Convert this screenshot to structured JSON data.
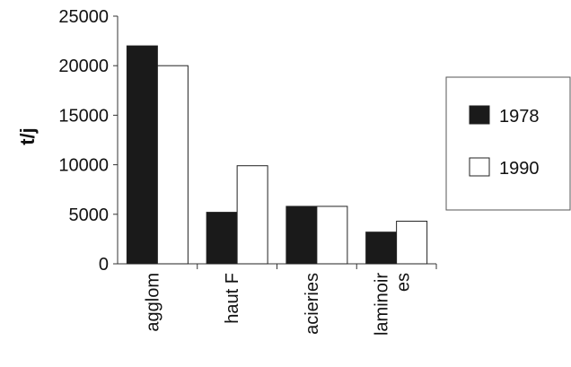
{
  "chart_data": {
    "type": "bar",
    "categories": [
      "agglom",
      "haut F",
      "acieries",
      "laminoir\nes"
    ],
    "series": [
      {
        "name": "1978",
        "values": [
          22000,
          5200,
          5800,
          3200
        ],
        "color": "#1a1a1a"
      },
      {
        "name": "1990",
        "values": [
          20000,
          9900,
          5800,
          4300
        ],
        "color": "#ffffff"
      }
    ],
    "title": "",
    "xlabel": "",
    "ylabel": "t/j",
    "ylim": [
      0,
      25000
    ],
    "yticks": [
      "0",
      "5000",
      "10000",
      "15000",
      "20000",
      "25000"
    ],
    "grid": false,
    "legend_position": "right"
  }
}
